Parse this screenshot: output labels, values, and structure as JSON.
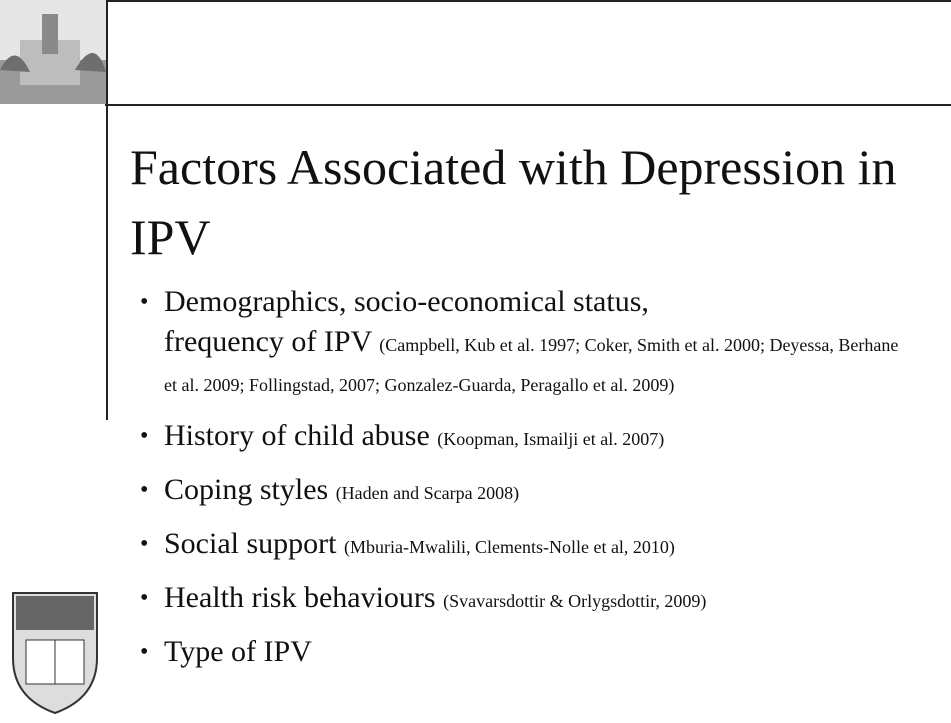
{
  "title": "Factors Associated with Depression in IPV",
  "bullets": [
    {
      "text": "Demographics, socio-economical status,",
      "text_continued": "frequency of IPV",
      "reference": "(Campbell, Kub et al. 1997; Coker, Smith et al. 2000; Deyessa, Berhane et al. 2009; Follingstad, 2007; Gonzalez-Guarda, Peragallo et al. 2009)"
    },
    {
      "text": "History of child abuse",
      "reference": "(Koopman, Ismailji et al. 2007)"
    },
    {
      "text": "Coping styles",
      "reference": "(Haden and Scarpa 2008)"
    },
    {
      "text": "Social support",
      "reference": "(Mburia-Mwalili, Clements-Nolle et al, 2010)"
    },
    {
      "text": "Health risk behaviours",
      "reference": "(Svavarsdottir & Orlygsdottir, 2009)"
    },
    {
      "text": "Type of IPV"
    }
  ]
}
